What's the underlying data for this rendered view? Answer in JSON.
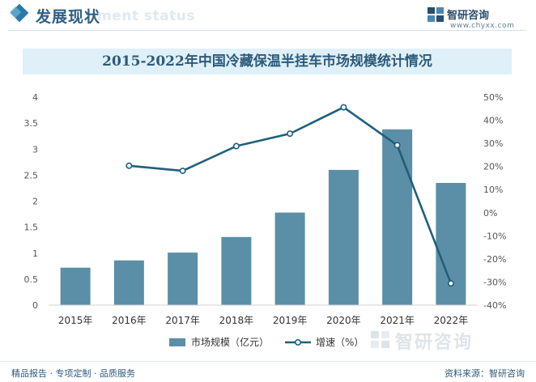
{
  "header": {
    "title": "发展现状",
    "ghost_text": "ment status"
  },
  "brand": {
    "name": "智研咨询",
    "url": "www.chyxx.com"
  },
  "footer": {
    "left": "精品报告 · 专项定制 · 品质服务",
    "right": "资料来源：智研咨询",
    "brand": "智研咨询"
  },
  "colors": {
    "bar": "#5b8fa8",
    "line": "#1f5f7c",
    "title_band": "#dff0f9",
    "accent": "#2d7aa8"
  },
  "chart_data": {
    "type": "bar+line",
    "title": "2015-2022年中国冷藏保温半挂车市场规模统计情况",
    "categories": [
      "2015年",
      "2016年",
      "2017年",
      "2018年",
      "2019年",
      "2020年",
      "2021年",
      "2022年"
    ],
    "series": [
      {
        "name": "市场规模（亿元）",
        "type": "bar",
        "axis": "left",
        "values": [
          0.72,
          0.86,
          1.01,
          1.31,
          1.78,
          2.6,
          3.38,
          2.35
        ]
      },
      {
        "name": "增速（%）",
        "type": "line",
        "axis": "right",
        "values": [
          null,
          20.3,
          18.1,
          28.8,
          34.2,
          45.6,
          29.2,
          -30.6
        ]
      }
    ],
    "y_left": {
      "min": 0,
      "max": 4,
      "ticks": [
        "0",
        "0.5",
        "1",
        "1.5",
        "2",
        "2.5",
        "3",
        "3.5",
        "4"
      ]
    },
    "y_right": {
      "min": -40,
      "max": 50,
      "ticks": [
        "-40%",
        "-30%",
        "-20%",
        "-10%",
        "0%",
        "10%",
        "20%",
        "30%",
        "40%",
        "50%"
      ]
    },
    "grid": false,
    "legend_placement": "bottom-center"
  }
}
